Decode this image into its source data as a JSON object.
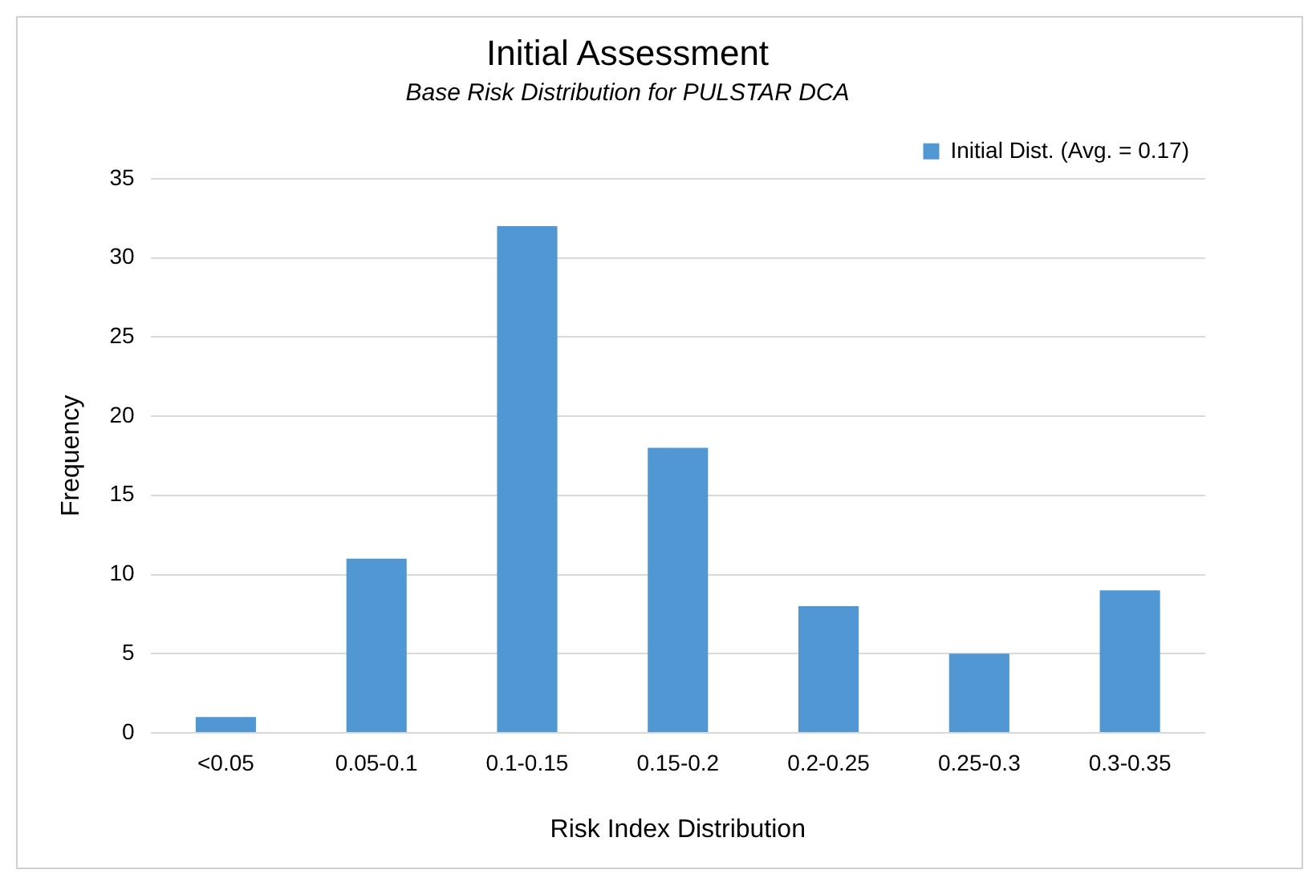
{
  "chart_data": {
    "type": "bar",
    "title": "Initial Assessment",
    "subtitle": "Base Risk Distribution for PULSTAR DCA",
    "xlabel": "Risk Index Distribution",
    "ylabel": "Frequency",
    "categories": [
      "<0.05",
      "0.05-0.1",
      "0.1-0.15",
      "0.15-0.2",
      "0.2-0.25",
      "0.25-0.3",
      "0.3-0.35"
    ],
    "series": [
      {
        "name": "Initial Dist. (Avg. = 0.17)",
        "color": "#5197d3",
        "values": [
          1,
          11,
          32,
          18,
          8,
          5,
          9
        ]
      }
    ],
    "ylim": [
      0,
      35
    ],
    "yticks": [
      0,
      5,
      10,
      15,
      20,
      25,
      30,
      35
    ],
    "grid": "y",
    "legend": "top right"
  }
}
